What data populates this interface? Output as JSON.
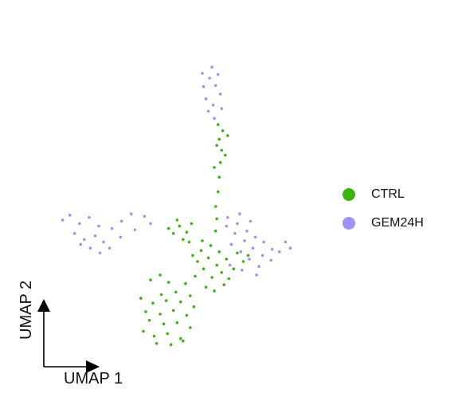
{
  "chart_data": {
    "type": "scatter",
    "title": "",
    "xlabel": "UMAP 1",
    "ylabel": "UMAP 2",
    "grid": false,
    "legend_position": "right",
    "series": [
      {
        "name": "CTRL",
        "color": "#3cb30f",
        "values": [
          [
            1.1,
            -4.2
          ],
          [
            2.0,
            -4.6
          ],
          [
            3.1,
            -4.4
          ],
          [
            4.2,
            -4.8
          ],
          [
            1.6,
            -3.3
          ],
          [
            2.8,
            -3.6
          ],
          [
            3.9,
            -3.5
          ],
          [
            5.0,
            -3.9
          ],
          [
            1.3,
            -2.6
          ],
          [
            2.5,
            -2.8
          ],
          [
            3.6,
            -2.5
          ],
          [
            4.7,
            -2.9
          ],
          [
            1.9,
            -1.9
          ],
          [
            3.0,
            -1.7
          ],
          [
            4.2,
            -1.8
          ],
          [
            5.3,
            -2.2
          ],
          [
            2.2,
            -5.2
          ],
          [
            3.4,
            -5.3
          ],
          [
            4.4,
            -5.0
          ],
          [
            0.9,
            -1.5
          ],
          [
            2.6,
            -1.2
          ],
          [
            3.8,
            -1.0
          ],
          [
            5.0,
            -1.3
          ],
          [
            4.6,
            -0.3
          ],
          [
            5.4,
            0.3
          ],
          [
            6.1,
            0.9
          ],
          [
            5.6,
            1.5
          ],
          [
            6.5,
            1.8
          ],
          [
            7.2,
            1.2
          ],
          [
            6.8,
            0.2
          ],
          [
            7.6,
            0.6
          ],
          [
            8.2,
            0.1
          ],
          [
            5.9,
            2.4
          ],
          [
            6.7,
            2.8
          ],
          [
            7.4,
            2.3
          ],
          [
            8.0,
            1.7
          ],
          [
            6.3,
            -0.6
          ],
          [
            7.0,
            -0.9
          ],
          [
            7.8,
            -0.4
          ],
          [
            8.6,
            0.9
          ],
          [
            3.6,
            3.8
          ],
          [
            4.1,
            4.4
          ],
          [
            4.7,
            3.9
          ],
          [
            3.2,
            4.2
          ],
          [
            4.4,
            3.3
          ],
          [
            5.1,
            4.6
          ],
          [
            3.9,
            4.9
          ],
          [
            4.9,
            3.1
          ],
          [
            7.1,
            4.0
          ],
          [
            7.2,
            5.0
          ],
          [
            7.1,
            6.0
          ],
          [
            7.3,
            7.2
          ],
          [
            7.4,
            8.4
          ],
          [
            7.5,
            9.6
          ],
          [
            7.6,
            10.6
          ],
          [
            7.4,
            11.5
          ],
          [
            7.7,
            12.2
          ],
          [
            7.2,
            11.0
          ],
          [
            7.9,
            10.2
          ],
          [
            7.0,
            9.2
          ],
          [
            8.1,
            11.8
          ],
          [
            7.3,
            12.7
          ],
          [
            2.5,
            0.4
          ],
          [
            3.2,
            -0.2
          ],
          [
            1.7,
            0.0
          ],
          [
            6.0,
            3.2
          ],
          [
            5.2,
            2.0
          ],
          [
            8.9,
            2.2
          ],
          [
            9.4,
            1.5
          ],
          [
            9.8,
            2.0
          ]
        ]
      },
      {
        "name": "GEM24H",
        "color": "#9a94f5",
        "values": [
          [
            6.1,
            15.8
          ],
          [
            6.6,
            16.5
          ],
          [
            7.1,
            15.9
          ],
          [
            6.3,
            14.8
          ],
          [
            6.9,
            14.3
          ],
          [
            7.5,
            15.2
          ],
          [
            6.0,
            16.9
          ],
          [
            6.8,
            17.4
          ],
          [
            7.3,
            16.8
          ],
          [
            6.5,
            13.8
          ],
          [
            7.6,
            14.0
          ],
          [
            7.0,
            13.2
          ],
          [
            -5.0,
            5.3
          ],
          [
            -4.2,
            4.6
          ],
          [
            -3.4,
            5.1
          ],
          [
            -2.6,
            4.4
          ],
          [
            -4.6,
            3.8
          ],
          [
            -3.8,
            3.3
          ],
          [
            -2.9,
            3.6
          ],
          [
            -2.2,
            3.1
          ],
          [
            -3.3,
            2.6
          ],
          [
            -2.5,
            2.2
          ],
          [
            -1.7,
            2.6
          ],
          [
            -4.1,
            2.9
          ],
          [
            -1.5,
            4.2
          ],
          [
            -0.7,
            4.8
          ],
          [
            0.1,
            5.4
          ],
          [
            -5.6,
            4.9
          ],
          [
            -0.8,
            3.5
          ],
          [
            0.4,
            4.1
          ],
          [
            1.2,
            5.2
          ],
          [
            1.7,
            4.6
          ],
          [
            8.1,
            5.1
          ],
          [
            8.9,
            4.6
          ],
          [
            9.7,
            4.0
          ],
          [
            10.4,
            3.5
          ],
          [
            11.1,
            3.1
          ],
          [
            11.8,
            2.5
          ],
          [
            8.7,
            3.8
          ],
          [
            9.5,
            3.2
          ],
          [
            10.2,
            2.6
          ],
          [
            11.0,
            2.0
          ],
          [
            11.7,
            1.6
          ],
          [
            12.4,
            2.3
          ],
          [
            8.4,
            2.9
          ],
          [
            9.2,
            2.3
          ],
          [
            9.9,
            1.7
          ],
          [
            10.7,
            1.1
          ],
          [
            8.0,
            4.4
          ],
          [
            9.1,
            5.4
          ],
          [
            10.0,
            4.8
          ],
          [
            12.9,
            3.1
          ],
          [
            13.3,
            2.6
          ],
          [
            10.5,
            0.4
          ],
          [
            9.3,
            0.8
          ],
          [
            8.3,
            1.2
          ]
        ]
      }
    ],
    "arrow_labels": [
      "UMAP 1",
      "UMAP 2"
    ]
  }
}
